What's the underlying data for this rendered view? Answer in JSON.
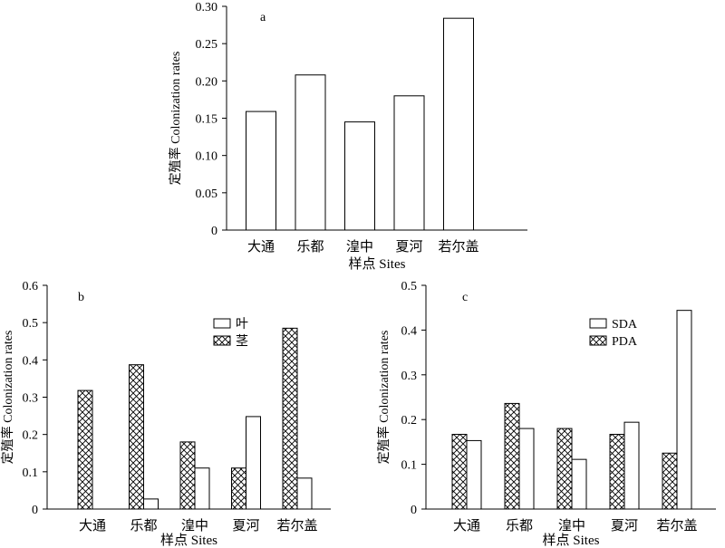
{
  "chart_data": [
    {
      "type": "bar",
      "panel_label": "a",
      "categories": [
        "大通",
        "乐都",
        "湟中",
        "夏河",
        "若尔盖"
      ],
      "values": [
        0.159,
        0.208,
        0.145,
        0.18,
        0.284
      ],
      "xlabel": "样点 Sites",
      "ylabel": "定殖率 Colonization rates",
      "ylim": [
        0,
        0.3
      ],
      "yticks": [
        0,
        0.05,
        0.1,
        0.15,
        0.2,
        0.25,
        0.3
      ],
      "ytick_labels": [
        "0",
        "0.05",
        "0.10",
        "0.15",
        "0.20",
        "0.25",
        "0.30"
      ],
      "grid": false,
      "legend": "none"
    },
    {
      "type": "bar",
      "panel_label": "b",
      "categories": [
        "大通",
        "乐都",
        "湟中",
        "夏河",
        "若尔盖"
      ],
      "series": [
        {
          "name": "茎",
          "pattern": "crosshatch",
          "values": [
            0.318,
            0.387,
            0.18,
            0.11,
            0.485
          ]
        },
        {
          "name": "叶",
          "pattern": "plain",
          "values": [
            0,
            0.027,
            0.11,
            0.248,
            0.083
          ]
        }
      ],
      "xlabel": "样点 Sites",
      "ylabel": "定殖率 Colonization rates",
      "ylim": [
        0,
        0.6
      ],
      "yticks": [
        0,
        0.1,
        0.2,
        0.3,
        0.4,
        0.5,
        0.6
      ],
      "ytick_labels": [
        "0",
        "0.1",
        "0.2",
        "0.3",
        "0.4",
        "0.5",
        "0.6"
      ],
      "grid": false,
      "legend": "top-right"
    },
    {
      "type": "bar",
      "panel_label": "c",
      "categories": [
        "大通",
        "乐都",
        "湟中",
        "夏河",
        "若尔盖"
      ],
      "series": [
        {
          "name": "PDA",
          "pattern": "crosshatch",
          "values": [
            0.167,
            0.236,
            0.18,
            0.167,
            0.125
          ]
        },
        {
          "name": "SDA",
          "pattern": "plain",
          "values": [
            0.153,
            0.18,
            0.111,
            0.194,
            0.444
          ]
        }
      ],
      "xlabel": "样点 Sites",
      "ylabel": "定殖率 Colonization rates",
      "ylim": [
        0,
        0.5
      ],
      "yticks": [
        0,
        0.1,
        0.2,
        0.3,
        0.4,
        0.5
      ],
      "ytick_labels": [
        "0",
        "0.1",
        "0.2",
        "0.3",
        "0.4",
        "0.5"
      ],
      "grid": false,
      "legend": "top-right"
    }
  ],
  "legend_order": [
    [
      "叶",
      "茎"
    ],
    [
      "SDA",
      "PDA"
    ]
  ]
}
